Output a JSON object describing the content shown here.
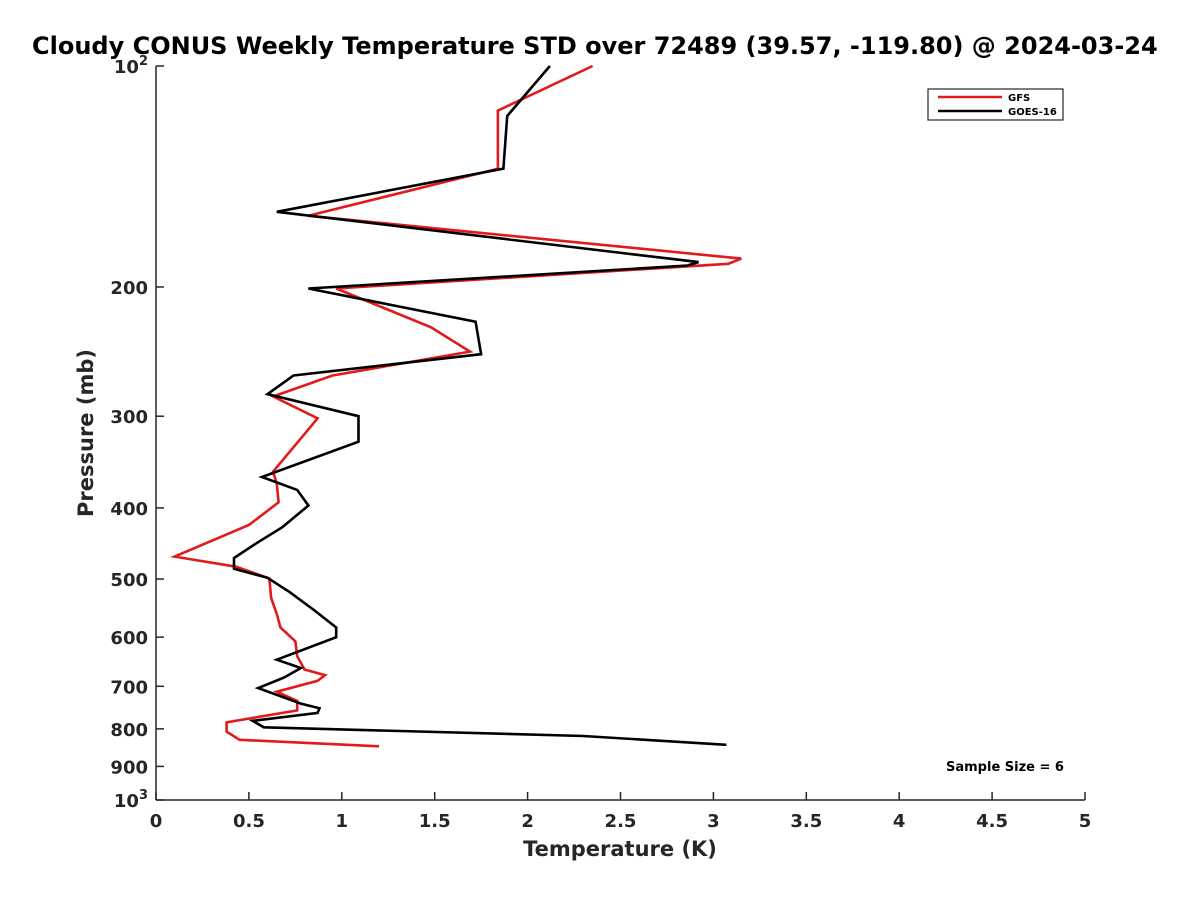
{
  "chart_data": {
    "type": "line",
    "title": "Cloudy CONUS Weekly Temperature STD over 72489 (39.57, -119.80) @ 2024-03-24",
    "xlabel": "Temperature (K)",
    "ylabel": "Pressure (mb)",
    "xlim": [
      0,
      5
    ],
    "ylim": [
      100,
      1000
    ],
    "y_scale": "log",
    "y_reversed": true,
    "grid": false,
    "legend_position": "top-right",
    "x_ticks": [
      0,
      0.5,
      1,
      1.5,
      2,
      2.5,
      3,
      3.5,
      4,
      4.5,
      5
    ],
    "x_tick_labels": [
      "0",
      "0.5",
      "1",
      "1.5",
      "2",
      "2.5",
      "3",
      "3.5",
      "4",
      "4.5",
      "5"
    ],
    "y_ticks": [
      100,
      200,
      300,
      400,
      500,
      600,
      700,
      800,
      900,
      1000
    ],
    "y_tick_labels": [
      {
        "base": "10",
        "exp": "2"
      },
      {
        "base": "200",
        "exp": ""
      },
      {
        "base": "300",
        "exp": ""
      },
      {
        "base": "400",
        "exp": ""
      },
      {
        "base": "500",
        "exp": ""
      },
      {
        "base": "600",
        "exp": ""
      },
      {
        "base": "700",
        "exp": ""
      },
      {
        "base": "800",
        "exp": ""
      },
      {
        "base": "900",
        "exp": ""
      },
      {
        "base": "10",
        "exp": "3"
      }
    ],
    "annotation": "Sample Size = 6",
    "series": [
      {
        "name": "GFS",
        "color": "#e31a1c",
        "points": [
          [
            2.35,
            100
          ],
          [
            1.84,
            115
          ],
          [
            1.84,
            125
          ],
          [
            1.84,
            138
          ],
          [
            0.82,
            160
          ],
          [
            3.15,
            183
          ],
          [
            3.08,
            186
          ],
          [
            0.97,
            201
          ],
          [
            1.48,
            227
          ],
          [
            1.69,
            245
          ],
          [
            0.95,
            264
          ],
          [
            0.63,
            282
          ],
          [
            0.87,
            302
          ],
          [
            0.63,
            357
          ],
          [
            0.65,
            371
          ],
          [
            0.66,
            393
          ],
          [
            0.5,
            422
          ],
          [
            0.1,
            466
          ],
          [
            0.43,
            481
          ],
          [
            0.61,
            499
          ],
          [
            0.62,
            531
          ],
          [
            0.65,
            558
          ],
          [
            0.67,
            582
          ],
          [
            0.75,
            608
          ],
          [
            0.76,
            637
          ],
          [
            0.8,
            664
          ],
          [
            0.91,
            676
          ],
          [
            0.87,
            688
          ],
          [
            0.65,
            712
          ],
          [
            0.76,
            733
          ],
          [
            0.76,
            755
          ],
          [
            0.38,
            784
          ],
          [
            0.38,
            807
          ],
          [
            0.45,
            828
          ],
          [
            1.2,
            845
          ]
        ]
      },
      {
        "name": "GOES-16",
        "color": "#000000",
        "points": [
          [
            2.12,
            100
          ],
          [
            1.89,
            117
          ],
          [
            1.87,
            138
          ],
          [
            0.65,
            158
          ],
          [
            2.92,
            185
          ],
          [
            2.86,
            187
          ],
          [
            0.82,
            201
          ],
          [
            1.72,
            223
          ],
          [
            1.75,
            247
          ],
          [
            0.74,
            264
          ],
          [
            0.6,
            280
          ],
          [
            1.09,
            300
          ],
          [
            1.09,
            325
          ],
          [
            0.57,
            363
          ],
          [
            0.76,
            378
          ],
          [
            0.82,
            397
          ],
          [
            0.68,
            425
          ],
          [
            0.54,
            447
          ],
          [
            0.42,
            468
          ],
          [
            0.42,
            484
          ],
          [
            0.6,
            498
          ],
          [
            0.72,
            521
          ],
          [
            0.85,
            551
          ],
          [
            0.97,
            582
          ],
          [
            0.97,
            600
          ],
          [
            0.65,
            644
          ],
          [
            0.78,
            661
          ],
          [
            0.69,
            681
          ],
          [
            0.55,
            704
          ],
          [
            0.78,
            739
          ],
          [
            0.88,
            750
          ],
          [
            0.87,
            761
          ],
          [
            0.52,
            780
          ],
          [
            0.58,
            796
          ],
          [
            2.3,
            818
          ],
          [
            3.07,
            841
          ]
        ]
      }
    ]
  }
}
